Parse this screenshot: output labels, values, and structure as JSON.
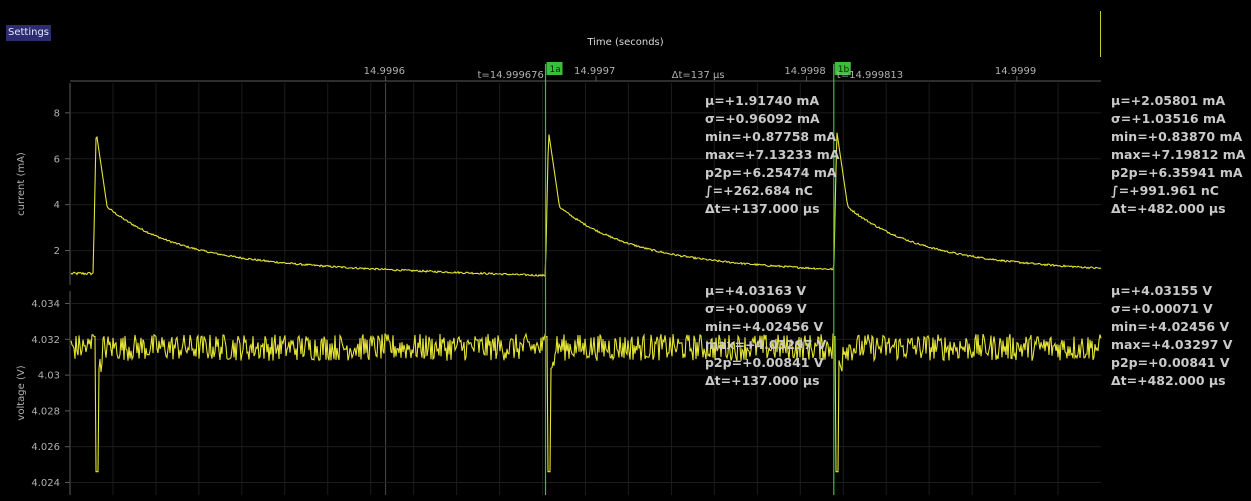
{
  "header": {
    "settings_label": "Settings",
    "xaxis_title": "Time (seconds)"
  },
  "colors": {
    "trace": "#e4e436",
    "cursor": "#3bbf3b",
    "grid": "#1c1c1c",
    "axis": "#5a5a5a",
    "text": "#b0b0b0"
  },
  "time_axis": {
    "ticks": [
      {
        "label": "14.9996",
        "t": 14.9996
      },
      {
        "label": "14.9997",
        "t": 14.9997
      },
      {
        "label": "14.9998",
        "t": 14.9998
      },
      {
        "label": "14.9999",
        "t": 14.9999
      }
    ],
    "range": [
      14.99945,
      14.99994
    ]
  },
  "markers": {
    "a": {
      "flag": "1a",
      "time_label": "t=14.999676",
      "t": 14.999676
    },
    "b": {
      "flag": "1b",
      "time_label": "t=14.999813",
      "t": 14.999813
    },
    "delta_label": "Δt=137 μs"
  },
  "chart_data": [
    {
      "type": "line",
      "ylabel": "current (mA)",
      "yticks": [
        "2",
        "4",
        "6",
        "8"
      ],
      "ylim": [
        0.5,
        9.3
      ],
      "series": [
        {
          "pulse_times": [
            14.999461,
            14.999676,
            14.999813,
            14.999943
          ],
          "baseline_mA": 1.0,
          "peak_mA": 7.2,
          "post_peak_mA": 3.9,
          "end_mA": 1.1
        }
      ],
      "stats_between_markers": [
        "μ=+1.91740 mA",
        "σ=+0.96092 mA",
        "min=+0.87758 mA",
        "max=+7.13233 mA",
        "p2p=+6.25474 mA",
        "∫=+262.684 nC",
        "Δt=+137.000 μs"
      ],
      "stats_visible": [
        "μ=+2.05801 mA",
        "σ=+1.03516 mA",
        "min=+0.83870 mA",
        "max=+7.19812 mA",
        "p2p=+6.35941 mA",
        "∫=+991.961 nC",
        "Δt=+482.000 μs"
      ]
    },
    {
      "type": "line",
      "ylabel": "voltage (V)",
      "yticks": [
        "4.024",
        "4.026",
        "4.028",
        "4.03",
        "4.032",
        "4.034"
      ],
      "ylim": [
        4.0233,
        4.0347
      ],
      "series": [
        {
          "pulse_times": [
            14.999461,
            14.999676,
            14.999813,
            14.999943
          ],
          "mean_V": 4.03155,
          "dip_V": 4.0246,
          "noise_p2p_V": 0.0015
        }
      ],
      "stats_between_markers": [
        "μ=+4.03163 V",
        "σ=+0.00069 V",
        "min=+4.02456 V",
        "max=+4.03297 V",
        "p2p=+0.00841 V",
        "Δt=+137.000 μs"
      ],
      "stats_visible": [
        "μ=+4.03155 V",
        "σ=+0.00071 V",
        "min=+4.02456 V",
        "max=+4.03297 V",
        "p2p=+0.00841 V",
        "Δt=+482.000 μs"
      ]
    }
  ]
}
